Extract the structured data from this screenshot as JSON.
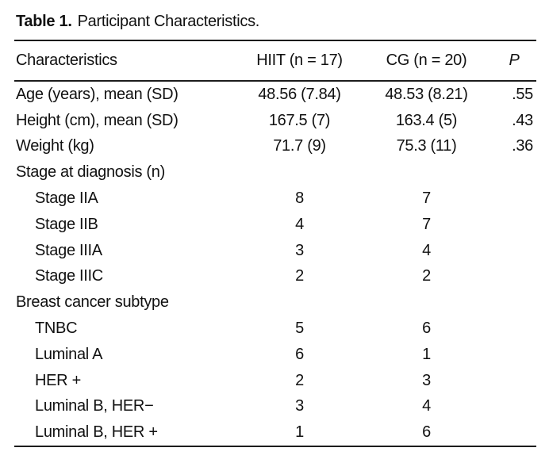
{
  "colors": {
    "background": "#ffffff",
    "text": "#111111",
    "rule": "#1c1c1c"
  },
  "table": {
    "title_label": "Table 1.",
    "title_text": "Participant Characteristics.",
    "columns": [
      "Characteristics",
      "HIIT (n = 17)",
      "CG (n = 20)",
      "P"
    ],
    "rows": [
      {
        "label": "Age (years), mean (SD)",
        "indent": false,
        "hiit": "48.56 (7.84)",
        "cg": "48.53 (8.21)",
        "p": ".55"
      },
      {
        "label": "Height (cm), mean (SD)",
        "indent": false,
        "hiit": "167.5 (7)",
        "cg": "163.4 (5)",
        "p": ".43"
      },
      {
        "label": "Weight (kg)",
        "indent": false,
        "hiit": "71.7 (9)",
        "cg": "75.3 (11)",
        "p": ".36"
      },
      {
        "label": "Stage at diagnosis (n)",
        "indent": false,
        "hiit": "",
        "cg": "",
        "p": ""
      },
      {
        "label": "Stage IIA",
        "indent": true,
        "hiit": "8",
        "cg": "7",
        "p": ""
      },
      {
        "label": "Stage IIB",
        "indent": true,
        "hiit": "4",
        "cg": "7",
        "p": ""
      },
      {
        "label": "Stage IIIA",
        "indent": true,
        "hiit": "3",
        "cg": "4",
        "p": ""
      },
      {
        "label": "Stage IIIC",
        "indent": true,
        "hiit": "2",
        "cg": "2",
        "p": ""
      },
      {
        "label": "Breast cancer subtype",
        "indent": false,
        "hiit": "",
        "cg": "",
        "p": ""
      },
      {
        "label": "TNBC",
        "indent": true,
        "hiit": "5",
        "cg": "6",
        "p": ""
      },
      {
        "label": "Luminal A",
        "indent": true,
        "hiit": "6",
        "cg": "1",
        "p": ""
      },
      {
        "label": "HER +",
        "indent": true,
        "hiit": "2",
        "cg": "3",
        "p": ""
      },
      {
        "label": "Luminal B, HER−",
        "indent": true,
        "hiit": "3",
        "cg": "4",
        "p": ""
      },
      {
        "label": "Luminal B, HER +",
        "indent": true,
        "hiit": "1",
        "cg": "6",
        "p": ""
      }
    ]
  }
}
